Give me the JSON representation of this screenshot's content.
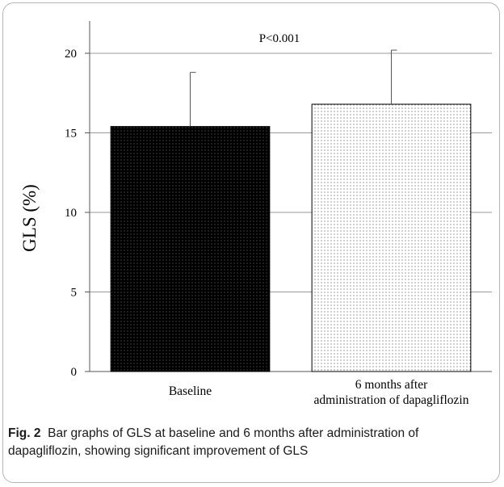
{
  "chart_data": {
    "type": "bar",
    "categories": [
      "Baseline",
      "6 months after administration of dapagliflozin"
    ],
    "category_lines": [
      [
        "Baseline"
      ],
      [
        "6 months after",
        "administration of dapagliflozin"
      ]
    ],
    "values": [
      15.4,
      16.8
    ],
    "error_plus": [
      3.4,
      3.4
    ],
    "ylabel": "GLS (%)",
    "xlabel": "",
    "ylim": [
      0,
      20
    ],
    "yticks": [
      0,
      5,
      10,
      15,
      20
    ],
    "grid": true,
    "annotation": "P<0.001",
    "bar_styles": [
      "dark-dotted",
      "light-dotted"
    ],
    "colors": {
      "bar_dark": "#000000",
      "bar_light": "#ffffff",
      "grid": "#9a9a9a",
      "error": "#555555"
    }
  },
  "caption": {
    "label": "Fig. 2",
    "text": "Bar graphs of GLS at baseline and 6 months after administration of dapagliflozin, showing significant improvement of GLS"
  }
}
